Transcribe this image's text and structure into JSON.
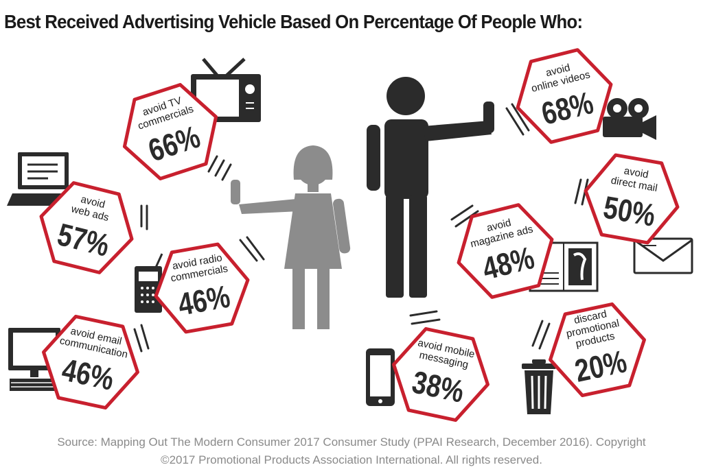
{
  "title": "Best Received Advertising Vehicle Based On Percentage Of People Who:",
  "source_line1": "Source: Mapping Out The Modern Consumer 2017 Consumer Study (PPAI Research, December 2016). Copyright",
  "source_line2": "©2017 Promotional Products Association International. All rights reserved.",
  "colors": {
    "accent": "#c8202e",
    "icon_dark": "#2b2b2b",
    "figure_gray": "#8c8c8c",
    "text": "#1a1a1a"
  },
  "chart_data": {
    "type": "infographic",
    "title": "Best Received Advertising Vehicle Based On Percentage Of People Who:",
    "unit": "%",
    "items": [
      {
        "id": "tv",
        "label": [
          "avoid TV",
          "commercials"
        ],
        "value": 66,
        "icon": "tv-icon"
      },
      {
        "id": "web",
        "label": [
          "avoid",
          "web ads"
        ],
        "value": 57,
        "icon": "laptop-icon"
      },
      {
        "id": "radio",
        "label": [
          "avoid radio",
          "commercials"
        ],
        "value": 46,
        "icon": "radio-icon"
      },
      {
        "id": "email",
        "label": [
          "avoid email",
          "communication"
        ],
        "value": 46,
        "icon": "desktop-computer-icon"
      },
      {
        "id": "video",
        "label": [
          "avoid",
          "online videos"
        ],
        "value": 68,
        "icon": "video-camera-icon"
      },
      {
        "id": "mail",
        "label": [
          "avoid",
          "direct mail"
        ],
        "value": 50,
        "icon": "envelope-icon"
      },
      {
        "id": "magazine",
        "label": [
          "avoid",
          "magazine ads"
        ],
        "value": 48,
        "icon": "magazine-icon"
      },
      {
        "id": "mobile",
        "label": [
          "avoid mobile",
          "messaging"
        ],
        "value": 38,
        "icon": "smartphone-icon"
      },
      {
        "id": "promo",
        "label": [
          "discard",
          "promotional",
          "products"
        ],
        "value": 20,
        "icon": "trash-can-icon"
      }
    ]
  }
}
